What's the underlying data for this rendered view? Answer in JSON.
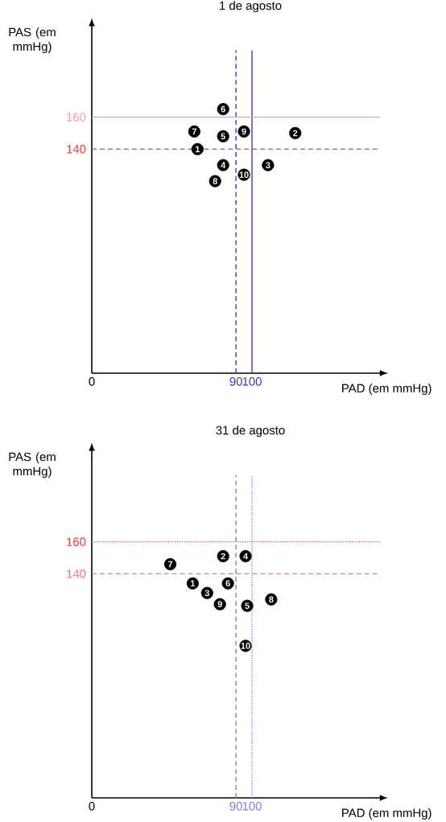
{
  "chart_data": [
    {
      "type": "scatter",
      "title": "1 de agosto",
      "xlabel": "PAD (em mmHg)",
      "ylabel": "PAS (em mmHg)",
      "xlim": [
        0,
        180
      ],
      "ylim": [
        0,
        217
      ],
      "xticks": [
        0,
        90,
        100
      ],
      "yticks": [
        140,
        160
      ],
      "marker": "circle",
      "series": [
        {
          "color": "#000000",
          "x": [
            66,
            127,
            110,
            82,
            82,
            82,
            64,
            77,
            95,
            95
          ],
          "values": [
            140,
            150,
            130,
            130,
            148,
            165,
            151,
            120,
            151,
            124
          ]
        }
      ],
      "annotations": [
        {
          "text": "1",
          "x": 66,
          "y": 140
        },
        {
          "text": "2",
          "x": 127,
          "y": 150
        },
        {
          "text": "3",
          "x": 110,
          "y": 130
        },
        {
          "text": "4",
          "x": 82,
          "y": 130
        },
        {
          "text": "5",
          "x": 82,
          "y": 148
        },
        {
          "text": "6",
          "x": 82,
          "y": 165
        },
        {
          "text": "7",
          "x": 64,
          "y": 151
        },
        {
          "text": "8",
          "x": 77,
          "y": 120
        },
        {
          "text": "9",
          "x": 95,
          "y": 151
        },
        {
          "text": "10",
          "x": 95,
          "y": 124
        }
      ],
      "ref_lines": [
        {
          "axis": "x",
          "value": 90,
          "color": "#3b3bb8",
          "line_style": "dashed"
        },
        {
          "axis": "x",
          "value": 100,
          "color": "#3b3bb8",
          "line_style": "solid"
        },
        {
          "axis": "y",
          "value": 160,
          "color": "#ff9a9a",
          "line_style": "solid"
        },
        {
          "axis": "y",
          "value": 140,
          "color": "#f03a3a",
          "line_style": "dashed"
        }
      ]
    },
    {
      "type": "scatter",
      "title": "31 de agosto",
      "xlabel": "PAD (em mmHg)",
      "ylabel": "PAS (em mmHg)",
      "xlim": [
        0,
        180
      ],
      "ylim": [
        0,
        217
      ],
      "xticks": [
        0,
        90,
        100
      ],
      "yticks": [
        140,
        160
      ],
      "marker": "circle",
      "series": [
        {
          "color": "#000000",
          "x": [
            63,
            82,
            72,
            96,
            97,
            85,
            49,
            112,
            80,
            96
          ],
          "values": [
            134,
            151,
            128,
            151,
            120,
            134,
            146,
            124,
            121,
            95
          ]
        }
      ],
      "annotations": [
        {
          "text": "1",
          "x": 63,
          "y": 134
        },
        {
          "text": "2",
          "x": 82,
          "y": 151
        },
        {
          "text": "3",
          "x": 72,
          "y": 128
        },
        {
          "text": "4",
          "x": 96,
          "y": 151
        },
        {
          "text": "5",
          "x": 97,
          "y": 120
        },
        {
          "text": "6",
          "x": 85,
          "y": 134
        },
        {
          "text": "7",
          "x": 49,
          "y": 146
        },
        {
          "text": "8",
          "x": 112,
          "y": 124
        },
        {
          "text": "9",
          "x": 80,
          "y": 121
        },
        {
          "text": "10",
          "x": 96,
          "y": 95
        }
      ],
      "ref_lines": [
        {
          "axis": "x",
          "value": 90,
          "color": "#8080d8",
          "line_style": "dashed"
        },
        {
          "axis": "x",
          "value": 100,
          "color": "#8080d8",
          "line_style": "dotted"
        },
        {
          "axis": "y",
          "value": 160,
          "color": "#f03a3a",
          "line_style": "dotted"
        },
        {
          "axis": "y",
          "value": 140,
          "color": "#ff7070",
          "line_style": "dashed"
        }
      ]
    }
  ]
}
